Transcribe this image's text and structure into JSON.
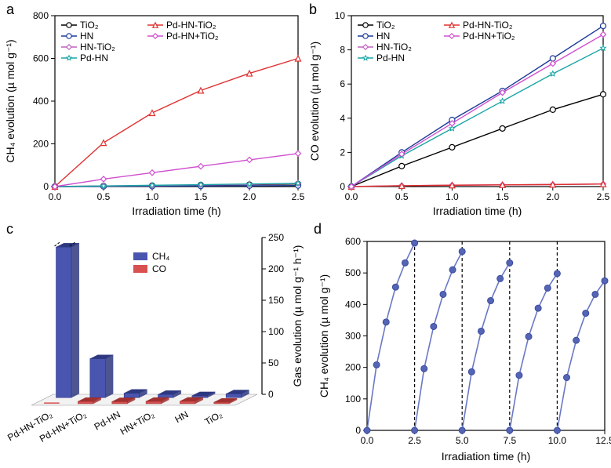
{
  "panel_a": {
    "label": "a",
    "type": "line",
    "xlabel": "Irradiation time (h)",
    "ylabel": "CH₄ evolution (µ mol g⁻¹)",
    "xlim": [
      0,
      2.5
    ],
    "xtick_step": 0.5,
    "ylim": [
      0,
      800
    ],
    "ytick_step": 200,
    "label_fontsize": 14,
    "tick_fontsize": 12,
    "background_color": "#ffffff",
    "series": [
      {
        "name": "TiO2",
        "label": "TiO₂",
        "color": "#000000",
        "marker": "circle-open",
        "x": [
          0,
          0.5,
          1.0,
          1.5,
          2.0,
          2.5
        ],
        "y": [
          0,
          2,
          4,
          7,
          9,
          12
        ]
      },
      {
        "name": "HN",
        "label": "HN",
        "color": "#1a3a9a",
        "marker": "circle-open",
        "x": [
          0,
          0.5,
          1.0,
          1.5,
          2.0,
          2.5
        ],
        "y": [
          0,
          1,
          2,
          3,
          4,
          5
        ]
      },
      {
        "name": "HN-TiO2",
        "label": "HN-TiO₂",
        "color": "#c060c0",
        "marker": "diamond-open",
        "x": [
          0,
          0.5,
          1.0,
          1.5,
          2.0,
          2.5
        ],
        "y": [
          0,
          3,
          5,
          8,
          10,
          15
        ]
      },
      {
        "name": "Pd-HN",
        "label": "Pd-HN",
        "color": "#1aa5a5",
        "marker": "star-open",
        "x": [
          0,
          0.5,
          1.0,
          1.5,
          2.0,
          2.5
        ],
        "y": [
          0,
          3,
          6,
          9,
          12,
          15
        ]
      },
      {
        "name": "Pd-HN-TiO2",
        "label": "Pd-HN-TiO₂",
        "color": "#e03030",
        "marker": "triangle-open",
        "x": [
          0,
          0.5,
          1.0,
          1.5,
          2.0,
          2.5
        ],
        "y": [
          0,
          205,
          345,
          450,
          530,
          600
        ]
      },
      {
        "name": "Pd-HN+TiO2",
        "label": "Pd-HN+TiO₂",
        "color": "#d050d0",
        "marker": "diamond-open",
        "x": [
          0,
          0.5,
          1.0,
          1.5,
          2.0,
          2.5
        ],
        "y": [
          0,
          35,
          65,
          95,
          125,
          155
        ]
      }
    ],
    "legend_layout": [
      [
        "TiO2",
        "Pd-HN-TiO2"
      ],
      [
        "HN",
        "Pd-HN+TiO2"
      ],
      [
        "HN-TiO2"
      ],
      [
        "Pd-HN"
      ]
    ]
  },
  "panel_b": {
    "label": "b",
    "type": "line",
    "xlabel": "Irradiation time (h)",
    "ylabel": "CO evolution (µ mol g⁻¹)",
    "xlim": [
      0,
      2.5
    ],
    "xtick_step": 0.5,
    "ylim": [
      0,
      10
    ],
    "ytick_step": 2,
    "label_fontsize": 14,
    "tick_fontsize": 12,
    "background_color": "#ffffff",
    "series": [
      {
        "name": "TiO2",
        "label": "TiO₂",
        "color": "#000000",
        "marker": "circle-open",
        "x": [
          0,
          0.5,
          1.0,
          1.5,
          2.0,
          2.5
        ],
        "y": [
          0,
          1.2,
          2.3,
          3.4,
          4.5,
          5.4
        ]
      },
      {
        "name": "HN",
        "label": "HN",
        "color": "#1a3a9a",
        "marker": "circle-open",
        "x": [
          0,
          0.5,
          1.0,
          1.5,
          2.0,
          2.5
        ],
        "y": [
          0,
          2.0,
          3.9,
          5.6,
          7.5,
          9.4
        ]
      },
      {
        "name": "HN-TiO2",
        "label": "HN-TiO₂",
        "color": "#c060c0",
        "marker": "diamond-open",
        "x": [
          0,
          0.5,
          1.0,
          1.5,
          2.0,
          2.5
        ],
        "y": [
          0,
          0.05,
          0.08,
          0.1,
          0.12,
          0.15
        ]
      },
      {
        "name": "Pd-HN",
        "label": "Pd-HN",
        "color": "#1aa5a5",
        "marker": "star-open",
        "x": [
          0,
          0.5,
          1.0,
          1.5,
          2.0,
          2.5
        ],
        "y": [
          0,
          1.8,
          3.4,
          5.0,
          6.6,
          8.1
        ]
      },
      {
        "name": "Pd-HN-TiO2",
        "label": "Pd-HN-TiO₂",
        "color": "#e03030",
        "marker": "triangle-open",
        "x": [
          0,
          0.5,
          1.0,
          1.5,
          2.0,
          2.5
        ],
        "y": [
          0,
          0.05,
          0.08,
          0.1,
          0.12,
          0.15
        ]
      },
      {
        "name": "Pd-HN+TiO2",
        "label": "Pd-HN+TiO₂",
        "color": "#d050d0",
        "marker": "diamond-open",
        "x": [
          0,
          0.5,
          1.0,
          1.5,
          2.0,
          2.5
        ],
        "y": [
          0,
          1.9,
          3.7,
          5.5,
          7.2,
          8.9
        ]
      }
    ],
    "legend_layout": [
      [
        "TiO2",
        "Pd-HN-TiO2"
      ],
      [
        "HN",
        "Pd-HN+TiO2"
      ],
      [
        "HN-TiO2"
      ],
      [
        "Pd-HN"
      ]
    ]
  },
  "panel_c": {
    "label": "c",
    "type": "bar3d",
    "ylabel": "Gas evolution (µ mol g⁻¹ h⁻¹)",
    "ylim": [
      0,
      250
    ],
    "ytick_step": 50,
    "categories": [
      "Pd-HN-TiO₂",
      "Pd-HN+TiO₂",
      "Pd-HN",
      "HN+TiO₂",
      "HN",
      "TiO₂"
    ],
    "series": [
      {
        "name": "CH4",
        "label": "CH₄",
        "color": "#4a55b0",
        "shade": "#2e3880",
        "values": [
          240,
          62,
          7,
          5,
          3,
          6
        ]
      },
      {
        "name": "CO",
        "label": "CO",
        "color": "#d85050",
        "shade": "#a03030",
        "values": [
          0.1,
          3.5,
          3.2,
          3.6,
          3.8,
          2.2
        ]
      }
    ],
    "label_fontsize": 14
  },
  "panel_d": {
    "label": "d",
    "type": "line",
    "xlabel": "Irradiation time (h)",
    "ylabel": "CH₄ evolution (µ mol g⁻¹)",
    "xlim": [
      0,
      12.5
    ],
    "xtick_step": 2.5,
    "ylim": [
      0,
      600
    ],
    "ytick_step": 100,
    "label_fontsize": 14,
    "tick_fontsize": 12,
    "marker_color": "#3a4ba0",
    "marker_fill": "#5565b5",
    "line_color": "#6a78c5",
    "cycle_boundaries": [
      2.5,
      5.0,
      7.5,
      10.0
    ],
    "cycles": [
      {
        "x": [
          0,
          0.5,
          1.0,
          1.5,
          2.0,
          2.5
        ],
        "y": [
          0,
          208,
          344,
          455,
          532,
          595
        ]
      },
      {
        "x": [
          2.5,
          3.0,
          3.5,
          4.0,
          4.5,
          5.0
        ],
        "y": [
          0,
          196,
          330,
          432,
          510,
          568
        ]
      },
      {
        "x": [
          5.0,
          5.5,
          6.0,
          6.5,
          7.0,
          7.5
        ],
        "y": [
          0,
          186,
          315,
          412,
          482,
          532
        ]
      },
      {
        "x": [
          7.5,
          8.0,
          8.5,
          9.0,
          9.5,
          10.0
        ],
        "y": [
          0,
          175,
          298,
          388,
          452,
          498
        ]
      },
      {
        "x": [
          10.0,
          10.5,
          11.0,
          11.5,
          12.0,
          12.5
        ],
        "y": [
          0,
          168,
          286,
          372,
          432,
          475
        ]
      }
    ]
  }
}
